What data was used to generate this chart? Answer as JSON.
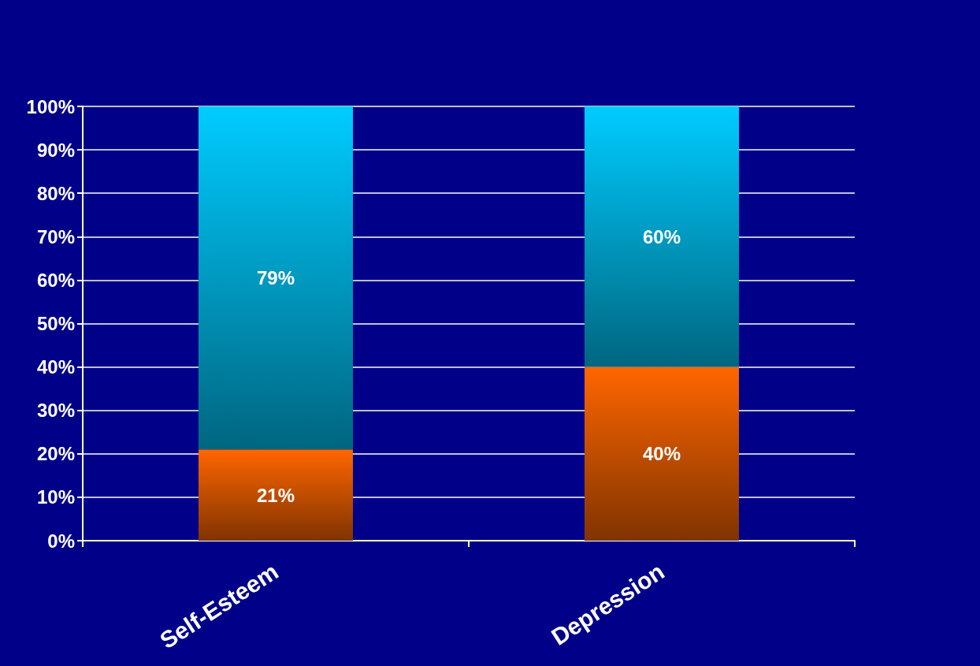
{
  "chart_data": {
    "type": "bar",
    "stacked": true,
    "categories": [
      "Self-Esteem",
      "Depression"
    ],
    "series": [
      {
        "color": "#ff6600",
        "values": [
          21,
          40
        ],
        "value_labels": [
          "21%",
          "40%"
        ]
      },
      {
        "color": "#00ccff",
        "values": [
          79,
          60
        ],
        "value_labels": [
          "79%",
          "60%"
        ]
      }
    ],
    "ylim": [
      0,
      100
    ],
    "yticks": [
      {
        "value": 0,
        "label": "0%"
      },
      {
        "value": 10,
        "label": "10%"
      },
      {
        "value": 20,
        "label": "20%"
      },
      {
        "value": 30,
        "label": "30%"
      },
      {
        "value": 40,
        "label": "40%"
      },
      {
        "value": 50,
        "label": "50%"
      },
      {
        "value": 60,
        "label": "60%"
      },
      {
        "value": 70,
        "label": "70%"
      },
      {
        "value": 80,
        "label": "80%"
      },
      {
        "value": 90,
        "label": "90%"
      },
      {
        "value": 100,
        "label": "100%"
      }
    ],
    "grid": "y"
  }
}
